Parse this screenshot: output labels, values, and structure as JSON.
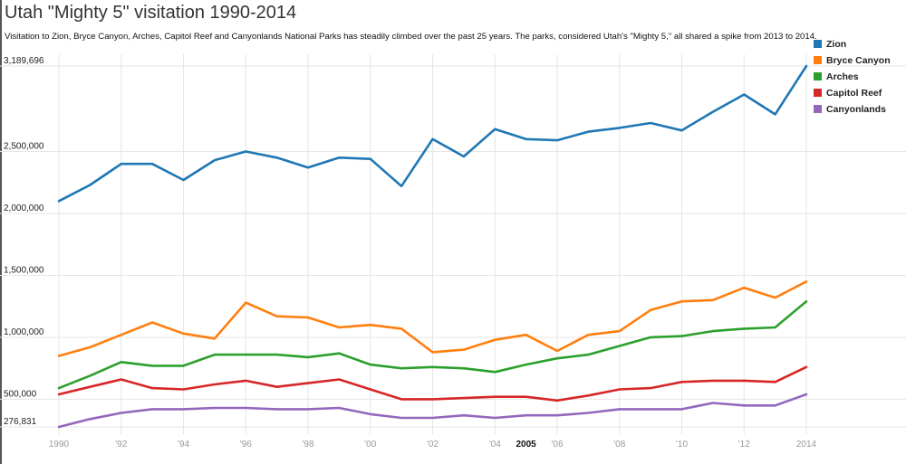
{
  "title": "Utah \"Mighty 5\" visitation 1990-2014",
  "subtitle": "Visitation to Zion, Bryce Canyon, Arches, Capitol Reef and Canyonlands National Parks has steadily climbed over the past 25 years. The parks, considered Utah's \"Mighty 5,\" all shared a spike from 2013 to 2014.",
  "chart_data": {
    "type": "line",
    "title": "Utah \"Mighty 5\" visitation 1990-2014",
    "xlabel": "",
    "ylabel": "",
    "ylim": [
      276831,
      3189696
    ],
    "x": [
      1990,
      1991,
      1992,
      1993,
      1994,
      1995,
      1996,
      1997,
      1998,
      1999,
      2000,
      2001,
      2002,
      2003,
      2004,
      2005,
      2006,
      2007,
      2008,
      2009,
      2010,
      2011,
      2012,
      2013,
      2014
    ],
    "y_ticks": [
      {
        "value": 3189696,
        "label": "3,189,696"
      },
      {
        "value": 2500000,
        "label": "2,500,000"
      },
      {
        "value": 2000000,
        "label": "2,000,000"
      },
      {
        "value": 1500000,
        "label": "1,500,000"
      },
      {
        "value": 1000000,
        "label": "1,000,000"
      },
      {
        "value": 500000,
        "label": "500,000"
      },
      {
        "value": 276831,
        "label": "276,831"
      }
    ],
    "x_ticks": [
      {
        "value": 1990,
        "label": "1990"
      },
      {
        "value": 1992,
        "label": "'92"
      },
      {
        "value": 1994,
        "label": "'94"
      },
      {
        "value": 1996,
        "label": "'96"
      },
      {
        "value": 1998,
        "label": "'98"
      },
      {
        "value": 2000,
        "label": "'00"
      },
      {
        "value": 2002,
        "label": "'02"
      },
      {
        "value": 2004,
        "label": "'04"
      },
      {
        "value": 2005,
        "label": "2005",
        "highlight": true
      },
      {
        "value": 2006,
        "label": "'06"
      },
      {
        "value": 2008,
        "label": "'08"
      },
      {
        "value": 2010,
        "label": "'10"
      },
      {
        "value": 2012,
        "label": "'12"
      },
      {
        "value": 2014,
        "label": "2014"
      }
    ],
    "legend_position": "top-right",
    "series": [
      {
        "name": "Zion",
        "color": "#1f77b4",
        "values": [
          2100000,
          2230000,
          2400000,
          2400000,
          2270000,
          2430000,
          2500000,
          2450000,
          2370000,
          2450000,
          2440000,
          2220000,
          2600000,
          2460000,
          2680000,
          2600000,
          2590000,
          2660000,
          2690000,
          2730000,
          2670000,
          2820000,
          2960000,
          2800000,
          3189696
        ]
      },
      {
        "name": "Bryce Canyon",
        "color": "#ff7f0e",
        "values": [
          850000,
          920000,
          1020000,
          1120000,
          1030000,
          990000,
          1280000,
          1170000,
          1160000,
          1080000,
          1100000,
          1070000,
          880000,
          900000,
          980000,
          1020000,
          890000,
          1020000,
          1050000,
          1220000,
          1290000,
          1300000,
          1400000,
          1320000,
          1450000
        ]
      },
      {
        "name": "Arches",
        "color": "#2ca02c",
        "values": [
          590000,
          690000,
          800000,
          770000,
          770000,
          860000,
          860000,
          860000,
          840000,
          870000,
          780000,
          750000,
          760000,
          750000,
          720000,
          780000,
          830000,
          860000,
          930000,
          1000000,
          1010000,
          1050000,
          1070000,
          1080000,
          1290000
        ]
      },
      {
        "name": "Capitol Reef",
        "color": "#d62728",
        "values": [
          540000,
          600000,
          660000,
          590000,
          580000,
          620000,
          650000,
          600000,
          630000,
          660000,
          580000,
          500000,
          500000,
          510000,
          520000,
          520000,
          490000,
          530000,
          580000,
          590000,
          640000,
          650000,
          650000,
          640000,
          760000
        ]
      },
      {
        "name": "Canyonlands",
        "color": "#9467bd",
        "values": [
          276831,
          340000,
          390000,
          420000,
          420000,
          430000,
          430000,
          420000,
          420000,
          430000,
          380000,
          350000,
          350000,
          370000,
          350000,
          370000,
          370000,
          390000,
          420000,
          420000,
          420000,
          470000,
          450000,
          450000,
          540000
        ]
      }
    ]
  }
}
